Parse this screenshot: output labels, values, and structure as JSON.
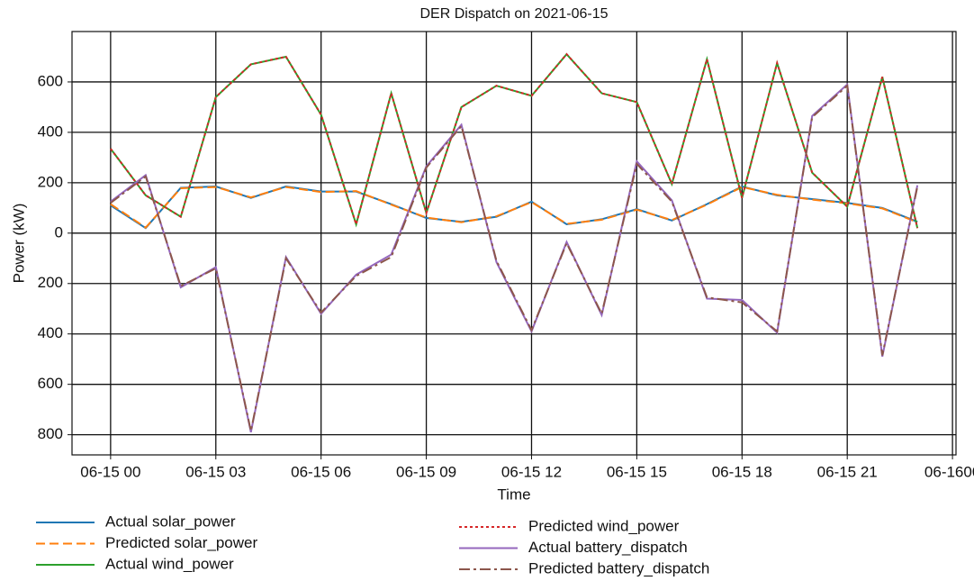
{
  "chart_data": {
    "type": "line",
    "title": "DER Dispatch on 2021-06-15",
    "xlabel": "Time",
    "ylabel": "Power (kW)",
    "x": [
      0,
      1,
      2,
      3,
      4,
      5,
      6,
      7,
      8,
      9,
      10,
      11,
      12,
      13,
      14,
      15,
      16,
      17,
      18,
      19,
      20,
      21,
      22,
      23
    ],
    "xlim": [
      -1.1,
      24.1
    ],
    "xticks": [
      {
        "value": 0,
        "label": "06-15 00"
      },
      {
        "value": 3,
        "label": "06-15 03"
      },
      {
        "value": 6,
        "label": "06-15 06"
      },
      {
        "value": 9,
        "label": "06-15 09"
      },
      {
        "value": 12,
        "label": "06-15 12"
      },
      {
        "value": 15,
        "label": "06-15 15"
      },
      {
        "value": 18,
        "label": "06-15 18"
      },
      {
        "value": 21,
        "label": "06-15 21"
      },
      {
        "value": 24,
        "label": "06-1600"
      }
    ],
    "ylim": [
      -880,
      800
    ],
    "yticks": [
      {
        "value": -800,
        "label": "800"
      },
      {
        "value": -600,
        "label": "600"
      },
      {
        "value": -400,
        "label": "400"
      },
      {
        "value": -200,
        "label": "200"
      },
      0,
      200,
      400,
      600
    ],
    "grid": true,
    "series": [
      {
        "name": "Actual solar_power",
        "color": "#1f77b4",
        "dash": "solid",
        "values": [
          110,
          20,
          180,
          185,
          140,
          185,
          165,
          165,
          115,
          60,
          45,
          65,
          125,
          35,
          55,
          95,
          50,
          115,
          185,
          150,
          135,
          120,
          100,
          45
        ]
      },
      {
        "name": "Predicted solar_power",
        "color": "#ff7f0e",
        "dash": "dashed",
        "values": [
          115,
          22,
          178,
          183,
          142,
          183,
          163,
          167,
          113,
          62,
          43,
          67,
          123,
          37,
          53,
          93,
          52,
          113,
          183,
          152,
          133,
          118,
          98,
          43
        ]
      },
      {
        "name": "Actual wind_power",
        "color": "#2ca02c",
        "dash": "solid",
        "values": [
          335,
          150,
          65,
          540,
          670,
          700,
          470,
          35,
          555,
          80,
          500,
          585,
          545,
          710,
          555,
          520,
          195,
          690,
          140,
          675,
          240,
          105,
          620,
          20
        ]
      },
      {
        "name": "Predicted wind_power",
        "color": "#d62728",
        "dash": "dotted",
        "values": [
          335,
          150,
          65,
          540,
          670,
          700,
          470,
          35,
          555,
          80,
          500,
          585,
          545,
          710,
          555,
          520,
          195,
          690,
          140,
          675,
          240,
          105,
          620,
          20
        ]
      },
      {
        "name": "Actual battery_dispatch",
        "color": "#9467bd",
        "dash": "solid",
        "values": [
          125,
          230,
          -215,
          -135,
          -790,
          -95,
          -320,
          -165,
          -85,
          265,
          430,
          -115,
          -390,
          -35,
          -325,
          285,
          130,
          -260,
          -265,
          -395,
          465,
          590,
          -490,
          190
        ]
      },
      {
        "name": "Predicted battery_dispatch",
        "color": "#8c564b",
        "dash": "dashdot",
        "values": [
          120,
          225,
          -210,
          -140,
          -785,
          -100,
          -315,
          -170,
          -95,
          260,
          425,
          -110,
          -385,
          -40,
          -320,
          275,
          125,
          -255,
          -275,
          -390,
          460,
          585,
          -485,
          185
        ]
      }
    ]
  }
}
